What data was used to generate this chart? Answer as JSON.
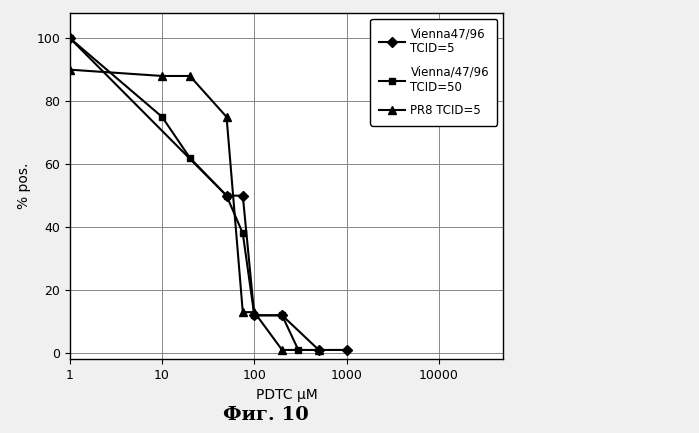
{
  "series": [
    {
      "label": "Vienna47/96\nTCID=5",
      "marker": "D",
      "x": [
        1,
        50,
        75,
        100,
        200,
        500,
        1000
      ],
      "y": [
        100,
        50,
        50,
        12,
        12,
        1,
        1
      ]
    },
    {
      "label": "Vienna/47/96\nTCID=50",
      "marker": "s",
      "x": [
        1,
        10,
        20,
        50,
        75,
        100,
        200,
        300
      ],
      "y": [
        100,
        75,
        62,
        50,
        38,
        12,
        12,
        1
      ]
    },
    {
      "label": "PR8 TCID=5",
      "marker": "^",
      "x": [
        1,
        10,
        20,
        50,
        75,
        100,
        200,
        500
      ],
      "y": [
        90,
        88,
        88,
        75,
        13,
        13,
        1,
        1
      ]
    }
  ],
  "xlabel": "PDTC μM",
  "ylabel": "% pos.",
  "xlim_log": [
    0,
    4.7
  ],
  "ylim": [
    -2,
    108
  ],
  "yticks": [
    0,
    20,
    40,
    60,
    80,
    100
  ],
  "xtick_vals": [
    1,
    10,
    100,
    1000,
    10000
  ],
  "xtick_labels": [
    "1",
    "10",
    "100",
    "1000",
    "10000"
  ],
  "fig_caption": "Фиг. 10",
  "line_color": "#000000",
  "background_color": "#f0f0f0",
  "plot_bg_color": "#ffffff",
  "grid_color": "#888888",
  "legend_fontsize": 8.5,
  "axis_fontsize": 10,
  "tick_fontsize": 9,
  "caption_fontsize": 14,
  "linewidth": 1.5,
  "markersize_D": 5,
  "markersize_s": 5,
  "markersize_tri": 6
}
